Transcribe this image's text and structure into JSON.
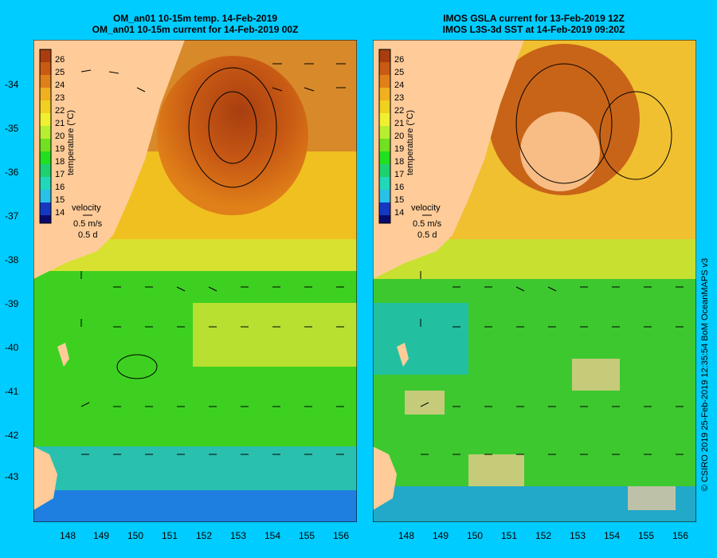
{
  "colors": {
    "background": "#00ccff",
    "land": "#ffcc99",
    "colormap": [
      "#0a0a6e",
      "#1538c0",
      "#1f7fe0",
      "#2ac0e8",
      "#22d8b8",
      "#1fd070",
      "#22e01f",
      "#70e020",
      "#b8ee30",
      "#f0f030",
      "#f0d020",
      "#f0b020",
      "#e08018",
      "#c85a14",
      "#a83e10"
    ]
  },
  "left": {
    "title_line1": "OM_an01 10-15m temp. 14-Feb-2019",
    "title_line2": "OM_an01 10-15m current for 14-Feb-2019 00Z"
  },
  "right": {
    "title_line1": "IMOS GSLA current for 13-Feb-2019 12Z",
    "title_line2": "IMOS L3S-3d SST at 14-Feb-2019 09:20Z"
  },
  "colorbar": {
    "label": "temperature (°C)",
    "ticks": [
      "26",
      "25",
      "24",
      "23",
      "22",
      "21",
      "20",
      "19",
      "18",
      "17",
      "16",
      "15",
      "14"
    ]
  },
  "velocity_legend": {
    "title": "velocity",
    "speed": "0.5 m/s",
    "duration": "0.5 d"
  },
  "axes": {
    "lat_ticks": [
      "-34",
      "-35",
      "-36",
      "-37",
      "-38",
      "-39",
      "-40",
      "-41",
      "-42",
      "-43"
    ],
    "lon_ticks": [
      "148",
      "149",
      "150",
      "151",
      "152",
      "153",
      "154",
      "155",
      "156"
    ]
  },
  "credit": "© CSIRO 2019   25-Feb-2019 12:35:54 BoM OceanMAPS v3"
}
